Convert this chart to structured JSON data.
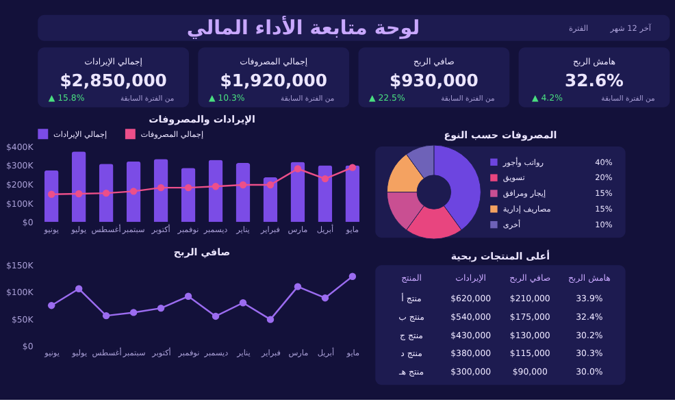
{
  "chart_data": [
    {
      "type": "other",
      "title": "لوحة متابعة الأداء المالي",
      "annotations": [
        "آخر 12 شهر",
        "الفترة"
      ]
    },
    {
      "type": "other",
      "title": "إجمالي الإيرادات",
      "annotations": [
        "$2,850,000",
        "▲ 15.8%",
        "من الفترة السابقة"
      ]
    },
    {
      "type": "other",
      "title": "إجمالي المصروفات",
      "annotations": [
        "$1,920,000",
        "▲ 10.3%",
        "من الفترة السابقة"
      ]
    },
    {
      "type": "other",
      "title": "صافي الربح",
      "annotations": [
        "$930,000",
        "▲ 22.5%",
        "من الفترة السابقة"
      ]
    },
    {
      "type": "other",
      "title": "هامش الربح",
      "annotations": [
        "32.6%",
        "▲ 4.2%",
        "من الفترة السابقة"
      ]
    },
    {
      "type": "bar",
      "title": "الإيرادات والمصروفات",
      "categories": [
        "يونيو",
        "يوليو",
        "أغسطس",
        "سبتمبر",
        "أكتوبر",
        "نوفمبر",
        "ديسمبر",
        "يناير",
        "فبراير",
        "مارس",
        "أبريل",
        "مايو"
      ],
      "series": [
        {
          "name": "إجمالي الإيرادات",
          "color": "#7b4ce6",
          "type": "bar",
          "values": [
            274000,
            374000,
            308000,
            321000,
            334000,
            287000,
            329000,
            313000,
            237000,
            318000,
            300000,
            300000
          ]
        },
        {
          "name": "إجمالي المصروفات",
          "color": "#ec4f8a",
          "type": "line",
          "values": [
            147000,
            150000,
            153000,
            163000,
            182000,
            182000,
            189000,
            197000,
            197000,
            282000,
            229000,
            289000
          ]
        }
      ],
      "ylim": [
        0,
        400000
      ],
      "yticks": [
        {
          "value": 0,
          "label": "$0"
        },
        {
          "value": 100000,
          "label": "$100K"
        },
        {
          "value": 200000,
          "label": "$200K"
        },
        {
          "value": 300000,
          "label": "$300K"
        },
        {
          "value": 400000,
          "label": "$400K"
        }
      ],
      "legend": "top",
      "marker": "circle"
    },
    {
      "type": "donut",
      "title": "المصروفات حسب النوع",
      "categories": [
        "رواتب وأجور",
        "تسويق",
        "إيجار ومرافق",
        "مصاريف إدارية",
        "أخرى"
      ],
      "values": [
        40,
        20,
        15,
        15,
        10
      ],
      "colors": [
        "#6d45e0",
        "#e8457f",
        "#c94f92",
        "#f4a261",
        "#6e62b8"
      ],
      "legend": "right",
      "value_labels": [
        "40%",
        "20%",
        "15%",
        "15%",
        "10%"
      ]
    },
    {
      "type": "line",
      "title": "صافي الربح",
      "categories": [
        "يونيو",
        "يوليو",
        "أغسطس",
        "سبتمبر",
        "أكتوبر",
        "نوفمبر",
        "ديسمبر",
        "يناير",
        "فبراير",
        "مارس",
        "أبريل",
        "مايو"
      ],
      "series": [
        {
          "color": "#9b6cf0",
          "values": [
            75000,
            106000,
            56000,
            62000,
            70000,
            92000,
            55000,
            80000,
            49000,
            110000,
            89000,
            129000
          ]
        }
      ],
      "ylim": [
        0,
        150000
      ],
      "yticks": [
        {
          "value": 0,
          "label": "$0"
        },
        {
          "value": 50000,
          "label": "$50K"
        },
        {
          "value": 100000,
          "label": "$100K"
        },
        {
          "value": 150000,
          "label": "$150K"
        }
      ],
      "marker": "circle"
    },
    {
      "type": "other",
      "title": "أعلى المنتجات ربحية",
      "categories": [
        "المنتج",
        "الإيرادات",
        "صافي الربح",
        "هامش الربح"
      ],
      "annotations": [
        "منتج أ",
        "$620,000",
        "$210,000",
        "33.9%",
        "منتج ب",
        "$540,000",
        "$175,000",
        "32.4%",
        "منتج ج",
        "$430,000",
        "$130,000",
        "30.2%",
        "منتج د",
        "$380,000",
        "$115,000",
        "30.3%",
        "منتج هـ",
        "$300,000",
        "$90,000",
        "30.0%"
      ]
    }
  ]
}
